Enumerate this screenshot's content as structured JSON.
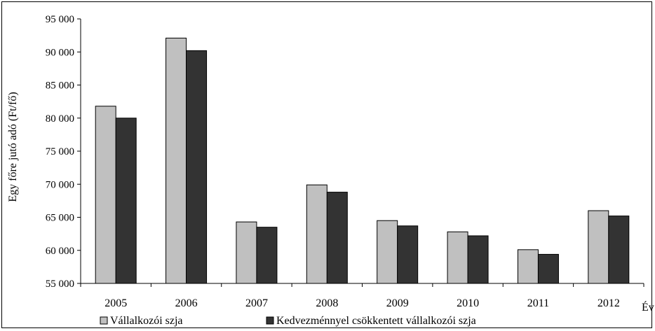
{
  "chart_data": {
    "type": "bar",
    "title": "",
    "xlabel": "Év",
    "ylabel": "Egy főre jutó adó (Ft/fő)",
    "ylim": [
      55000,
      95000
    ],
    "ytick_step": 5000,
    "yticks": [
      "55 000",
      "60 000",
      "65 000",
      "70 000",
      "75 000",
      "80 000",
      "85 000",
      "90 000",
      "95 000"
    ],
    "categories": [
      "2005",
      "2006",
      "2007",
      "2008",
      "2009",
      "2010",
      "2011",
      "2012"
    ],
    "series": [
      {
        "name": "Vállalkozói szja",
        "color": "#c0c0c0",
        "values": [
          81800,
          92100,
          64300,
          69900,
          64500,
          62800,
          60100,
          66000
        ]
      },
      {
        "name": "Kedvezménnyel csökkentett vállalkozói szja",
        "color": "#333333",
        "values": [
          80000,
          90200,
          63500,
          68800,
          63700,
          62200,
          59400,
          65200
        ]
      }
    ],
    "grid": false,
    "legend_position": "bottom"
  }
}
